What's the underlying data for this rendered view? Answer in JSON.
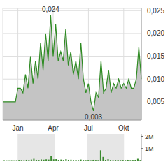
{
  "chart_data": [
    {
      "type": "area",
      "color": "#2e8b22",
      "grid": true,
      "categories": [
        null,
        null,
        null,
        null,
        null,
        null,
        "Jan",
        null,
        null,
        null,
        null,
        null,
        null,
        null,
        null,
        null,
        null,
        null,
        null,
        null,
        "Apr",
        null,
        null,
        null,
        null,
        null,
        null,
        null,
        null,
        null,
        null,
        null,
        null,
        null,
        "Jul",
        null,
        null,
        null,
        null,
        null,
        null,
        null,
        null,
        null,
        null,
        null,
        null,
        null,
        "Okt",
        null,
        null,
        null,
        null,
        null,
        null,
        null
      ],
      "values": [
        0.005,
        0.005,
        0.005,
        0.005,
        0.005,
        0.005,
        0.008,
        0.008,
        0.007,
        0.011,
        0.008,
        0.015,
        0.009,
        0.014,
        0.01,
        0.018,
        0.012,
        0.02,
        0.014,
        0.024,
        0.015,
        0.022,
        0.014,
        0.016,
        0.014,
        0.021,
        0.013,
        0.016,
        0.011,
        0.014,
        0.01,
        0.018,
        0.01,
        0.007,
        0.009,
        0.005,
        0.003,
        0.007,
        0.006,
        0.014,
        0.007,
        0.008,
        0.012,
        0.007,
        0.009,
        0.008,
        0.01,
        0.008,
        0.009,
        0.008,
        0.01,
        0.008,
        0.008,
        0.01,
        0.017,
        0.01
      ],
      "ylim": [
        0.001,
        0.0255
      ],
      "yticks": [
        {
          "value": 0.005,
          "label": "0,005"
        },
        {
          "value": 0.01,
          "label": "0,010"
        },
        {
          "value": 0.015,
          "label": "0,015"
        },
        {
          "value": 0.02,
          "label": "0,020"
        },
        {
          "value": 0.025,
          "label": "0,025"
        }
      ],
      "annotations": [
        {
          "text": "0,024",
          "value": 0.024
        },
        {
          "text": "0,003",
          "value": 0.003
        }
      ]
    },
    {
      "type": "bar",
      "color": "#3a8a2e",
      "tick_labels": "y",
      "categories": [
        null,
        null,
        null,
        null,
        null,
        null,
        "Jan",
        null,
        null,
        null,
        null,
        null,
        null,
        null,
        null,
        null,
        null,
        null,
        null,
        null,
        "Apr",
        null,
        null,
        null,
        null,
        null,
        null,
        null,
        null,
        null,
        null,
        null,
        null,
        null,
        "Jul",
        null,
        null,
        null,
        null,
        null,
        null,
        null,
        null,
        null,
        null,
        null,
        null,
        null,
        "Okt",
        null,
        null,
        null,
        null,
        null,
        null,
        null
      ],
      "values": [
        0.03,
        0.02,
        0.02,
        0.03,
        0.02,
        0.03,
        0.05,
        0.04,
        0.03,
        0.06,
        0.05,
        0.08,
        0.2,
        0.06,
        0.05,
        0.09,
        0.07,
        0.1,
        0.08,
        0.35,
        0.1,
        0.12,
        0.06,
        0.08,
        0.05,
        0.15,
        0.06,
        0.07,
        0.05,
        0.06,
        0.04,
        0.08,
        0.05,
        0.04,
        0.05,
        0.03,
        0.06,
        0.05,
        0.04,
        0.85,
        0.3,
        0.06,
        0.15,
        0.05,
        0.04,
        0.05,
        0.06,
        0.04,
        0.05,
        0.04,
        0.06,
        0.04,
        0.05,
        0.06,
        0.2,
        0.05
      ],
      "ylim": [
        0,
        2.2
      ],
      "yticks": [
        {
          "value": 1,
          "label": "1M"
        },
        {
          "value": 2,
          "label": "2M"
        }
      ]
    }
  ]
}
